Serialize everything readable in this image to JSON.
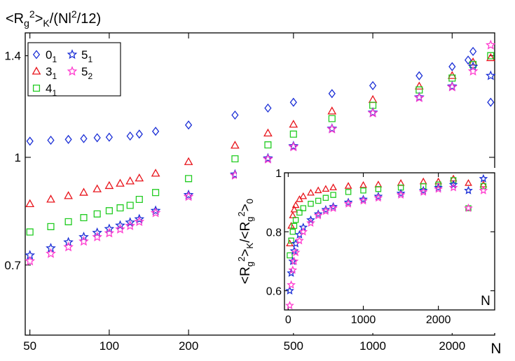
{
  "chart_data": [
    {
      "type": "scatter",
      "panel": "main",
      "title": "<Rg²>K/(Nl²/12)",
      "title_parts": {
        "open": "<R",
        "sub1": "g",
        "sup": "2",
        "gt": ">",
        "subK": "K",
        "rest": "/(Nl",
        "sup2": "2",
        "end": "/12)"
      },
      "xlabel": "N",
      "ylabel": "",
      "x_scale": "log",
      "y_scale": "log",
      "xlim": [
        48,
        2900
      ],
      "ylim": [
        0.555,
        1.51
      ],
      "x_ticks": [
        50,
        100,
        200,
        500,
        1000,
        2000
      ],
      "y_ticks": [
        0.7,
        1,
        1.4
      ],
      "y_tick_labels": [
        "0.7",
        "1",
        "1.4"
      ],
      "grid": false,
      "legend_position": "top-left",
      "legend": [
        {
          "base": "0",
          "sub": "1",
          "series": "0_1"
        },
        {
          "base": "3",
          "sub": "1",
          "series": "3_1"
        },
        {
          "base": "4",
          "sub": "1",
          "series": "4_1"
        },
        {
          "base": "5",
          "sub": "1",
          "series": "5_1"
        },
        {
          "base": "5",
          "sub": "2",
          "series": "5_2"
        }
      ],
      "series": [
        {
          "name": "0_1",
          "marker": "diamond",
          "color": "#1b2fd6",
          "points": [
            [
              50,
              1.055
            ],
            [
              60,
              1.058
            ],
            [
              70,
              1.061
            ],
            [
              80,
              1.064
            ],
            [
              90,
              1.067
            ],
            [
              100,
              1.069
            ],
            [
              120,
              1.073
            ],
            [
              130,
              1.08
            ],
            [
              150,
              1.09
            ],
            [
              200,
              1.113
            ],
            [
              300,
              1.15
            ],
            [
              400,
              1.177
            ],
            [
              500,
              1.2
            ],
            [
              700,
              1.235
            ],
            [
              1000,
              1.268
            ],
            [
              1500,
              1.31
            ],
            [
              2000,
              1.35
            ],
            [
              2300,
              1.38
            ],
            [
              2400,
              1.42
            ],
            [
              2800,
              1.2
            ]
          ]
        },
        {
          "name": "3_1",
          "marker": "triangle",
          "color": "#e8141b",
          "points": [
            [
              50,
              0.857
            ],
            [
              60,
              0.87
            ],
            [
              70,
              0.88
            ],
            [
              80,
              0.89
            ],
            [
              90,
              0.9
            ],
            [
              100,
              0.91
            ],
            [
              110,
              0.917
            ],
            [
              120,
              0.924
            ],
            [
              130,
              0.933
            ],
            [
              150,
              0.948
            ],
            [
              200,
              0.985
            ],
            [
              300,
              1.04
            ],
            [
              400,
              1.083
            ],
            [
              500,
              1.115
            ],
            [
              700,
              1.165
            ],
            [
              1000,
              1.21
            ],
            [
              1500,
              1.265
            ],
            [
              2000,
              1.31
            ],
            [
              2400,
              1.37
            ],
            [
              2800,
              1.39
            ]
          ]
        },
        {
          "name": "4_1",
          "marker": "square",
          "color": "#22cc22",
          "points": [
            [
              50,
              0.781
            ],
            [
              60,
              0.795
            ],
            [
              70,
              0.808
            ],
            [
              80,
              0.819
            ],
            [
              90,
              0.829
            ],
            [
              100,
              0.838
            ],
            [
              110,
              0.846
            ],
            [
              120,
              0.853
            ],
            [
              130,
              0.87
            ],
            [
              150,
              0.89
            ],
            [
              200,
              0.932
            ],
            [
              300,
              0.995
            ],
            [
              400,
              1.042
            ],
            [
              500,
              1.08
            ],
            [
              700,
              1.137
            ],
            [
              1000,
              1.188
            ],
            [
              1500,
              1.25
            ],
            [
              2000,
              1.3
            ],
            [
              2400,
              1.36
            ],
            [
              2800,
              1.4
            ]
          ]
        },
        {
          "name": "5_1",
          "marker": "star",
          "color": "#1b2fd6",
          "points": [
            [
              50,
              0.723
            ],
            [
              60,
              0.74
            ],
            [
              70,
              0.755
            ],
            [
              80,
              0.768
            ],
            [
              90,
              0.779
            ],
            [
              100,
              0.789
            ],
            [
              110,
              0.798
            ],
            [
              120,
              0.806
            ],
            [
              130,
              0.815
            ],
            [
              150,
              0.838
            ],
            [
              200,
              0.883
            ],
            [
              300,
              0.945
            ],
            [
              400,
              0.997
            ],
            [
              500,
              1.038
            ],
            [
              700,
              1.1
            ],
            [
              1000,
              1.16
            ],
            [
              1500,
              1.22
            ],
            [
              2000,
              1.265
            ],
            [
              2400,
              1.35
            ],
            [
              2800,
              1.31
            ]
          ]
        },
        {
          "name": "5_2",
          "marker": "star",
          "color": "#ff3ccf",
          "points": [
            [
              50,
              0.709
            ],
            [
              60,
              0.727
            ],
            [
              70,
              0.743
            ],
            [
              80,
              0.757
            ],
            [
              90,
              0.768
            ],
            [
              100,
              0.778
            ],
            [
              110,
              0.788
            ],
            [
              120,
              0.797
            ],
            [
              130,
              0.808
            ],
            [
              150,
              0.832
            ],
            [
              200,
              0.878
            ],
            [
              300,
              0.942
            ],
            [
              400,
              0.994
            ],
            [
              500,
              1.035
            ],
            [
              700,
              1.098
            ],
            [
              1000,
              1.158
            ],
            [
              1500,
              1.218
            ],
            [
              2000,
              1.262
            ],
            [
              2400,
              1.33
            ],
            [
              2800,
              1.45
            ]
          ]
        }
      ]
    },
    {
      "type": "scatter",
      "panel": "inset",
      "title": "",
      "xlabel": "N",
      "ylabel": "<Rg²>K/<Rg²>0",
      "ylabel_parts": {
        "open": "<R",
        "sub1": "g",
        "sup": "2",
        "gt": ">",
        "subK": "K",
        "slash": "/<R",
        "sub2": "g",
        "sup2": "2",
        "gt2": ">",
        "sub0": "0"
      },
      "x_scale": "linear",
      "y_scale": "linear",
      "xlim": [
        -50,
        2750
      ],
      "ylim": [
        0.535,
        1.0
      ],
      "x_ticks": [
        0,
        1000,
        2000
      ],
      "y_ticks": [
        0.6,
        0.8,
        1
      ],
      "y_tick_labels": [
        "0.6",
        "0.8",
        "1"
      ],
      "grid": false,
      "series": [
        {
          "name": "3_1",
          "marker": "triangle",
          "color": "#e8141b",
          "points": [
            [
              20,
              0.76
            ],
            [
              40,
              0.82
            ],
            [
              60,
              0.855
            ],
            [
              80,
              0.875
            ],
            [
              100,
              0.89
            ],
            [
              150,
              0.91
            ],
            [
              200,
              0.92
            ],
            [
              300,
              0.932
            ],
            [
              400,
              0.94
            ],
            [
              500,
              0.945
            ],
            [
              600,
              0.95
            ],
            [
              800,
              0.955
            ],
            [
              1000,
              0.958
            ],
            [
              1200,
              0.96
            ],
            [
              1500,
              0.965
            ],
            [
              1800,
              0.97
            ],
            [
              2000,
              0.97
            ],
            [
              2200,
              0.98
            ],
            [
              2400,
              0.965
            ],
            [
              2600,
              0.96
            ]
          ]
        },
        {
          "name": "4_1",
          "marker": "square",
          "color": "#22cc22",
          "points": [
            [
              20,
              0.72
            ],
            [
              40,
              0.77
            ],
            [
              60,
              0.8
            ],
            [
              80,
              0.82
            ],
            [
              100,
              0.84
            ],
            [
              150,
              0.865
            ],
            [
              200,
              0.88
            ],
            [
              300,
              0.895
            ],
            [
              400,
              0.905
            ],
            [
              500,
              0.915
            ],
            [
              600,
              0.925
            ],
            [
              800,
              0.935
            ],
            [
              1000,
              0.94
            ],
            [
              1200,
              0.945
            ],
            [
              1500,
              0.95
            ],
            [
              1800,
              0.955
            ],
            [
              2000,
              0.96
            ],
            [
              2200,
              0.975
            ],
            [
              2400,
              0.88
            ],
            [
              2600,
              0.955
            ]
          ]
        },
        {
          "name": "5_1",
          "marker": "star",
          "color": "#1b2fd6",
          "points": [
            [
              20,
              0.6
            ],
            [
              40,
              0.66
            ],
            [
              60,
              0.7
            ],
            [
              80,
              0.735
            ],
            [
              100,
              0.76
            ],
            [
              150,
              0.79
            ],
            [
              200,
              0.815
            ],
            [
              300,
              0.84
            ],
            [
              400,
              0.86
            ],
            [
              500,
              0.875
            ],
            [
              600,
              0.885
            ],
            [
              800,
              0.9
            ],
            [
              1000,
              0.91
            ],
            [
              1200,
              0.92
            ],
            [
              1500,
              0.93
            ],
            [
              1800,
              0.94
            ],
            [
              2000,
              0.95
            ],
            [
              2200,
              0.96
            ],
            [
              2400,
              0.94
            ],
            [
              2600,
              0.98
            ]
          ]
        },
        {
          "name": "5_2",
          "marker": "star",
          "color": "#ff3ccf",
          "points": [
            [
              20,
              0.55
            ],
            [
              40,
              0.62
            ],
            [
              60,
              0.67
            ],
            [
              80,
              0.7
            ],
            [
              100,
              0.73
            ],
            [
              150,
              0.77
            ],
            [
              200,
              0.8
            ],
            [
              300,
              0.83
            ],
            [
              400,
              0.855
            ],
            [
              500,
              0.87
            ],
            [
              600,
              0.88
            ],
            [
              800,
              0.895
            ],
            [
              1000,
              0.905
            ],
            [
              1200,
              0.915
            ],
            [
              1500,
              0.925
            ],
            [
              1800,
              0.935
            ],
            [
              2000,
              0.945
            ],
            [
              2200,
              0.95
            ],
            [
              2400,
              0.88
            ],
            [
              2600,
              0.94
            ]
          ]
        }
      ]
    }
  ]
}
